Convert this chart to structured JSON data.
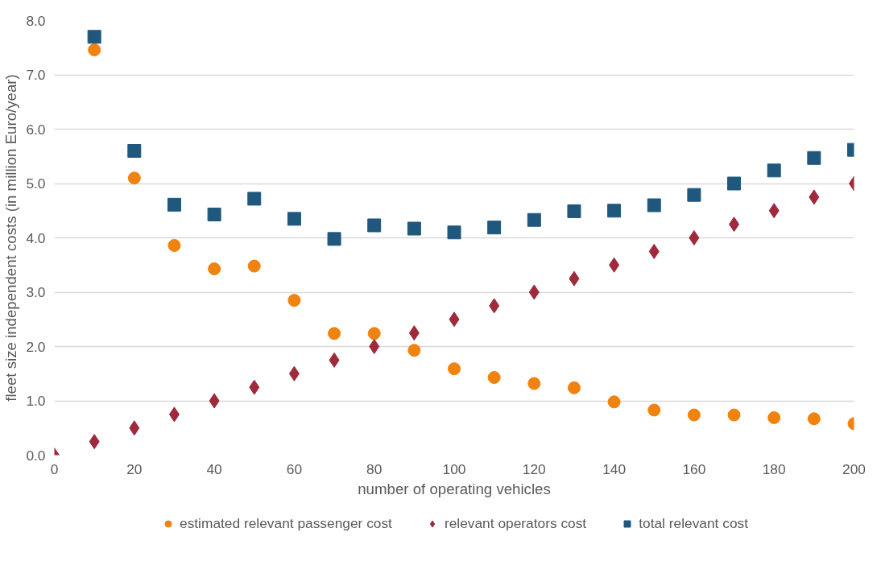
{
  "chart_data": {
    "type": "scatter",
    "xlabel": "number of operating vehicles",
    "ylabel": "fleet size independent costs (in million Euro/year)",
    "series": [
      {
        "name": "estimated relevant passenger cost",
        "color": "#f0820f",
        "marker": "circle",
        "x": [
          10,
          20,
          30,
          40,
          50,
          60,
          70,
          80,
          90,
          100,
          110,
          120,
          130,
          140,
          150,
          160,
          170,
          180,
          190,
          200
        ],
        "values": [
          7.46,
          5.1,
          3.86,
          3.43,
          3.48,
          2.85,
          2.24,
          2.24,
          1.93,
          1.59,
          1.43,
          1.32,
          1.24,
          0.98,
          0.83,
          0.74,
          0.74,
          0.69,
          0.67,
          0.58
        ]
      },
      {
        "name": "relevant operators cost",
        "color": "#9e2a3c",
        "marker": "diamond",
        "x": [
          0,
          10,
          20,
          30,
          40,
          50,
          60,
          70,
          80,
          90,
          100,
          110,
          120,
          130,
          140,
          150,
          160,
          170,
          180,
          190,
          200
        ],
        "values": [
          0,
          0.25,
          0.5,
          0.75,
          1.0,
          1.25,
          1.5,
          1.75,
          2.0,
          2.25,
          2.5,
          2.75,
          3.0,
          3.25,
          3.5,
          3.75,
          4.0,
          4.25,
          4.5,
          4.75,
          5.0
        ]
      },
      {
        "name": "total relevant cost",
        "color": "#1f587c",
        "marker": "square",
        "x": [
          10,
          20,
          30,
          40,
          50,
          60,
          70,
          80,
          90,
          100,
          110,
          120,
          130,
          140,
          150,
          160,
          170,
          180,
          190,
          200
        ],
        "values": [
          7.7,
          5.6,
          4.61,
          4.43,
          4.72,
          4.35,
          3.98,
          4.23,
          4.17,
          4.1,
          4.19,
          4.33,
          4.49,
          4.5,
          4.6,
          4.79,
          5.0,
          5.24,
          5.47,
          5.62
        ]
      }
    ],
    "xlim": [
      0,
      200
    ],
    "xticks": [
      0,
      20,
      40,
      60,
      80,
      100,
      120,
      140,
      160,
      180,
      200
    ],
    "ylim": [
      0,
      8
    ],
    "yticks": [
      {
        "value": 0,
        "label": "0.0"
      },
      {
        "value": 1,
        "label": "1.0"
      },
      {
        "value": 2,
        "label": "2.0"
      },
      {
        "value": 3,
        "label": "3.0"
      },
      {
        "value": 4,
        "label": "4.0"
      },
      {
        "value": 5,
        "label": "5.0"
      },
      {
        "value": 6,
        "label": "6.0"
      },
      {
        "value": 7,
        "label": "7.0"
      },
      {
        "value": 8,
        "label": "8.0"
      }
    ],
    "grid": "y",
    "legend": "bottom"
  }
}
